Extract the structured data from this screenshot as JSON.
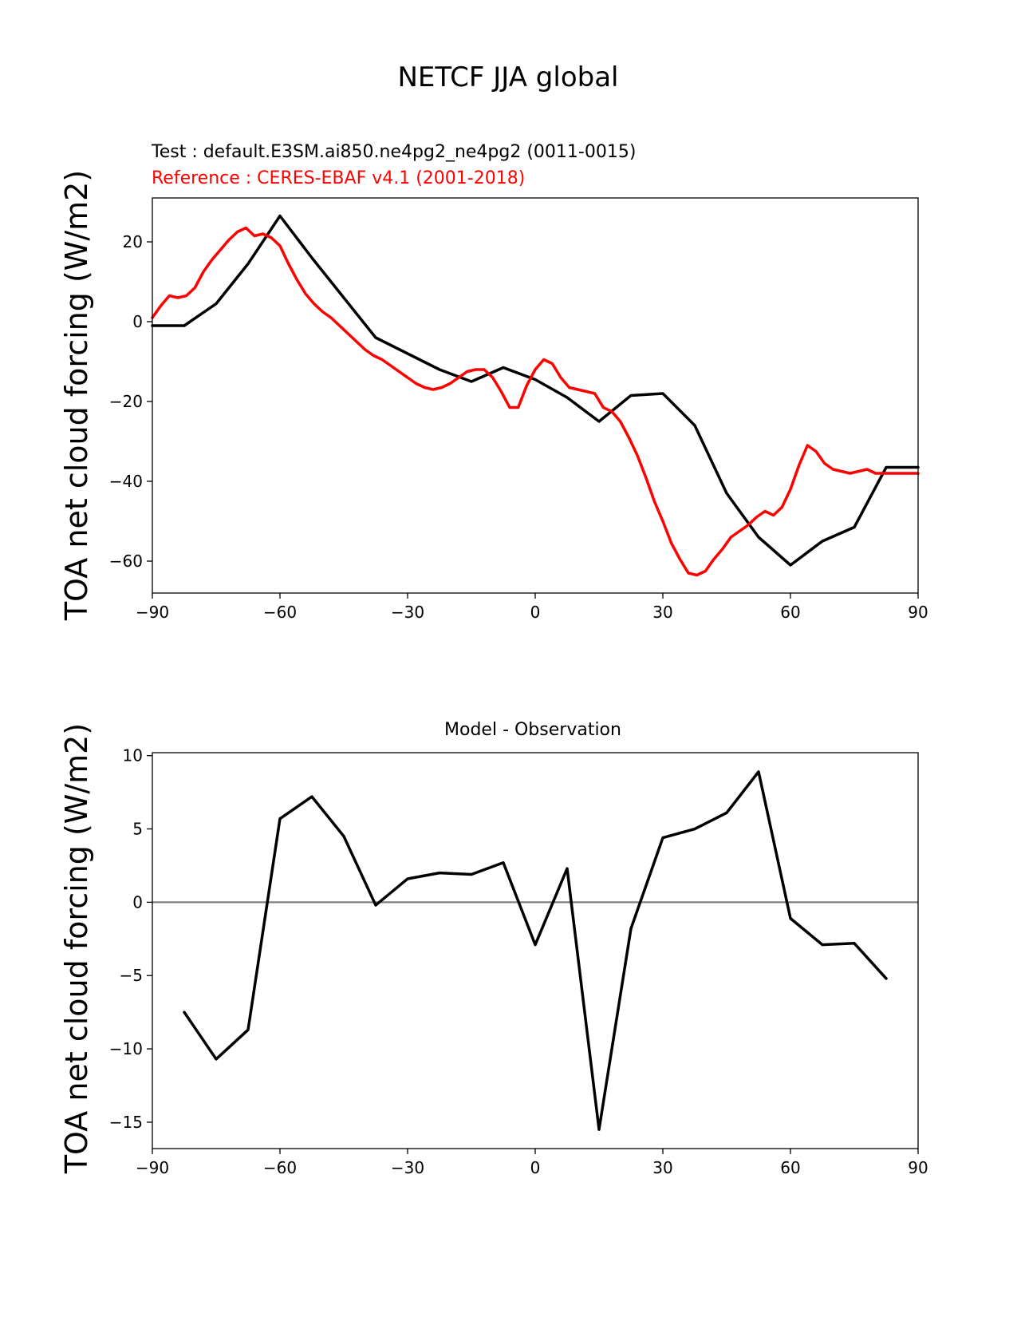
{
  "figure": {
    "title": "NETCF JJA global"
  },
  "chart_data": [
    {
      "type": "line",
      "name": "top-panel",
      "test_label": "Test : default.E3SM.ai850.ne4pg2_ne4pg2 (0011-0015)",
      "reference_label": "Reference : CERES-EBAF v4.1 (2001-2018)",
      "ylabel": "TOA net cloud forcing (W/m2)",
      "xlabel": "",
      "xlim": [
        -90,
        90
      ],
      "ylim": [
        -68,
        31
      ],
      "xticks": [
        -90,
        -60,
        -30,
        0,
        30,
        60,
        90
      ],
      "xtick_labels": [
        "−90",
        "−60",
        "−30",
        "0",
        "30",
        "60",
        "90"
      ],
      "yticks": [
        20,
        0,
        -20,
        -40,
        -60
      ],
      "ytick_labels": [
        "20",
        "0",
        "−20",
        "−40",
        "−60"
      ],
      "series": [
        {
          "name": "Test",
          "color": "#000000",
          "x": [
            -90,
            -82.5,
            -75,
            -67.5,
            -60,
            -52.5,
            -45,
            -37.5,
            -30,
            -22.5,
            -15,
            -7.5,
            0,
            7.5,
            15,
            22.5,
            30,
            37.5,
            45,
            52.5,
            60,
            67.5,
            75,
            82.5,
            90
          ],
          "y": [
            -1.0,
            -1.0,
            4.5,
            14.5,
            26.5,
            16.0,
            6.0,
            -4.0,
            -8.0,
            -12.0,
            -15.0,
            -11.5,
            -14.5,
            -19.0,
            -25.0,
            -18.5,
            -18.0,
            -26.0,
            -43.0,
            -54.0,
            -61.0,
            -55.0,
            -51.5,
            -36.5,
            -36.5
          ]
        },
        {
          "name": "Reference",
          "color": "#ff0000",
          "x": [
            -90,
            -88,
            -86,
            -84,
            -82,
            -80,
            -78,
            -76,
            -74,
            -72,
            -70,
            -68,
            -66,
            -64,
            -62,
            -60,
            -58,
            -56,
            -54,
            -52,
            -50,
            -48,
            -46,
            -44,
            -42,
            -40,
            -38,
            -36,
            -34,
            -32,
            -30,
            -28,
            -26,
            -24,
            -22,
            -20,
            -18,
            -16,
            -14,
            -12,
            -10,
            -8,
            -6,
            -4,
            -2,
            0,
            2,
            4,
            6,
            8,
            10,
            12,
            14,
            16,
            18,
            20,
            22,
            24,
            26,
            28,
            30,
            32,
            34,
            36,
            38,
            40,
            42,
            44,
            46,
            48,
            50,
            52,
            54,
            56,
            58,
            60,
            62,
            64,
            66,
            68,
            70,
            72,
            74,
            76,
            78,
            80,
            82,
            84,
            86,
            88,
            90
          ],
          "y": [
            1.0,
            4.0,
            6.5,
            6.0,
            6.5,
            8.5,
            12.5,
            15.5,
            18.0,
            20.5,
            22.5,
            23.5,
            21.5,
            22.0,
            21.0,
            19.0,
            14.5,
            10.5,
            7.0,
            4.5,
            2.5,
            1.0,
            -1.0,
            -3.0,
            -5.0,
            -7.0,
            -8.5,
            -9.5,
            -11.0,
            -12.5,
            -14.0,
            -15.5,
            -16.5,
            -17.0,
            -16.5,
            -15.5,
            -14.0,
            -12.5,
            -12.0,
            -12.0,
            -14.0,
            -17.5,
            -21.5,
            -21.5,
            -16.0,
            -12.0,
            -9.5,
            -10.5,
            -14.0,
            -16.5,
            -17.0,
            -17.5,
            -18.0,
            -21.5,
            -22.5,
            -25.0,
            -29.0,
            -33.5,
            -39.0,
            -45.0,
            -50.0,
            -55.5,
            -59.5,
            -63.0,
            -63.5,
            -62.5,
            -59.5,
            -57.0,
            -54.0,
            -52.5,
            -51.0,
            -49.0,
            -47.5,
            -48.5,
            -46.5,
            -42.0,
            -36.0,
            -31.0,
            -32.5,
            -35.5,
            -37.0,
            -37.5,
            -38.0,
            -37.5,
            -37.0,
            -38.0,
            -38.0,
            -38.0,
            -38.0,
            -38.0,
            -38.0
          ]
        }
      ]
    },
    {
      "type": "line",
      "name": "bottom-panel",
      "title": "Model - Observation",
      "ylabel": "TOA net cloud forcing (W/m2)",
      "xlabel": "",
      "xlim": [
        -90,
        90
      ],
      "ylim": [
        -16.8,
        10.2
      ],
      "xticks": [
        -90,
        -60,
        -30,
        0,
        30,
        60,
        90
      ],
      "xtick_labels": [
        "−90",
        "−60",
        "−30",
        "0",
        "30",
        "60",
        "90"
      ],
      "yticks": [
        10,
        5,
        0,
        -5,
        -10,
        -15
      ],
      "ytick_labels": [
        "10",
        "5",
        "0",
        "−5",
        "−10",
        "−15"
      ],
      "zero_line_color": "#808080",
      "series": [
        {
          "name": "Difference",
          "color": "#000000",
          "x": [
            -82.5,
            -75,
            -67.5,
            -60,
            -52.5,
            -45,
            -37.5,
            -30,
            -22.5,
            -15,
            -7.5,
            0,
            7.5,
            15,
            22.5,
            30,
            37.5,
            45,
            52.5,
            60,
            67.5,
            75,
            82.5
          ],
          "y": [
            -7.5,
            -10.7,
            -8.7,
            5.7,
            7.2,
            4.5,
            -0.2,
            1.6,
            2.0,
            1.9,
            2.7,
            -2.9,
            2.3,
            -15.5,
            -1.8,
            4.4,
            5.0,
            6.1,
            8.9,
            -1.1,
            -2.9,
            -2.8,
            -5.2
          ]
        }
      ]
    }
  ]
}
